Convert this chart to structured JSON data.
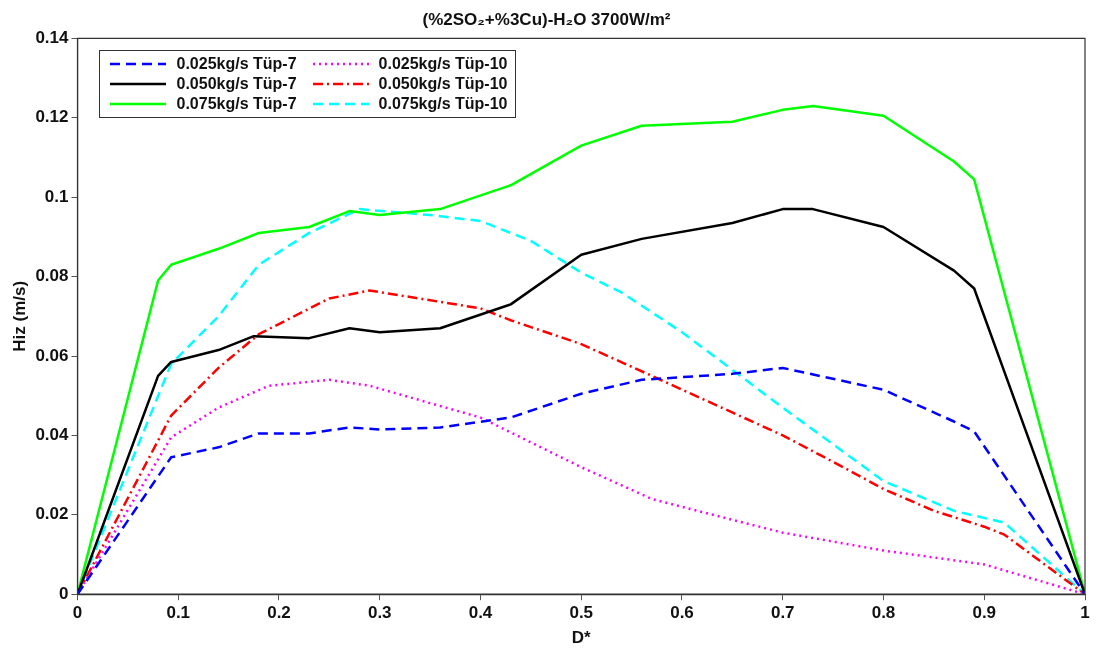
{
  "chart_data": {
    "type": "line",
    "title": "(%2SO₂+%3Cu)-H₂O 3700W/m²",
    "xlabel": "D*",
    "ylabel": "Hiz (m/s)",
    "xlim": [
      0,
      1
    ],
    "xticks": [
      0,
      0.1,
      0.2,
      0.3,
      0.4,
      0.5,
      0.6,
      0.7,
      0.8,
      0.9,
      1
    ],
    "ylim": [
      0,
      0.14
    ],
    "yticks": [
      0,
      0.02,
      0.04,
      0.06,
      0.08,
      0.1,
      0.12,
      0.14
    ],
    "grid": false,
    "legend": "top left",
    "marker": "none",
    "series": [
      {
        "name": "0.025kg/s Tüp-7",
        "color": "#0000ff",
        "line_style": "dashed",
        "x": [
          0,
          0.093,
          0.14,
          0.18,
          0.23,
          0.27,
          0.3,
          0.36,
          0.43,
          0.5,
          0.56,
          0.65,
          0.7,
          0.8,
          0.87,
          0.89,
          1
        ],
        "values": [
          0,
          0.0345,
          0.037,
          0.0405,
          0.0405,
          0.042,
          0.0415,
          0.042,
          0.0445,
          0.0505,
          0.054,
          0.0555,
          0.057,
          0.0515,
          0.0435,
          0.041,
          0
        ]
      },
      {
        "name": "0.050kg/s Tüp-7",
        "color": "#000000",
        "line_style": "solid",
        "x": [
          0,
          0.08,
          0.093,
          0.14,
          0.175,
          0.23,
          0.27,
          0.3,
          0.36,
          0.43,
          0.5,
          0.56,
          0.65,
          0.7,
          0.73,
          0.8,
          0.87,
          0.89,
          1
        ],
        "values": [
          0,
          0.055,
          0.0585,
          0.0615,
          0.065,
          0.0645,
          0.067,
          0.066,
          0.067,
          0.073,
          0.0855,
          0.0895,
          0.0935,
          0.097,
          0.097,
          0.0925,
          0.0815,
          0.077,
          0
        ]
      },
      {
        "name": "0.075kg/s Tüp-7",
        "color": "#00ff00",
        "line_style": "solid",
        "x": [
          0,
          0.08,
          0.093,
          0.14,
          0.18,
          0.23,
          0.27,
          0.3,
          0.36,
          0.43,
          0.5,
          0.56,
          0.65,
          0.7,
          0.73,
          0.8,
          0.87,
          0.89,
          1
        ],
        "values": [
          0,
          0.079,
          0.083,
          0.087,
          0.091,
          0.0925,
          0.0965,
          0.0955,
          0.097,
          0.103,
          0.113,
          0.118,
          0.119,
          0.122,
          0.123,
          0.1205,
          0.109,
          0.1045,
          0
        ]
      },
      {
        "name": "0.025kg/s Tüp-10",
        "color": "#ff00ff",
        "line_style": "dotted",
        "x": [
          0,
          0.093,
          0.14,
          0.19,
          0.25,
          0.29,
          0.4,
          0.5,
          0.57,
          0.6,
          0.7,
          0.8,
          0.9,
          1
        ],
        "values": [
          0,
          0.0395,
          0.047,
          0.0525,
          0.054,
          0.0525,
          0.0445,
          0.032,
          0.024,
          0.022,
          0.0155,
          0.011,
          0.0075,
          0
        ]
      },
      {
        "name": "0.050kg/s Tüp-10",
        "color": "#ff0000",
        "line_style": "dashdot",
        "x": [
          0,
          0.093,
          0.14,
          0.18,
          0.25,
          0.29,
          0.4,
          0.43,
          0.5,
          0.57,
          0.7,
          0.76,
          0.8,
          0.85,
          0.9,
          0.92,
          1
        ],
        "values": [
          0,
          0.045,
          0.057,
          0.0655,
          0.0745,
          0.0765,
          0.072,
          0.069,
          0.063,
          0.055,
          0.04,
          0.032,
          0.0265,
          0.021,
          0.017,
          0.015,
          0
        ]
      },
      {
        "name": "0.075kg/s Tüp-10",
        "color": "#00ffff",
        "line_style": "dashed",
        "x": [
          0,
          0.093,
          0.14,
          0.18,
          0.23,
          0.28,
          0.35,
          0.4,
          0.45,
          0.5,
          0.54,
          0.6,
          0.7,
          0.8,
          0.87,
          0.92,
          1
        ],
        "values": [
          0,
          0.058,
          0.07,
          0.083,
          0.091,
          0.097,
          0.0955,
          0.094,
          0.089,
          0.081,
          0.076,
          0.066,
          0.047,
          0.0285,
          0.021,
          0.018,
          0
        ]
      }
    ]
  }
}
